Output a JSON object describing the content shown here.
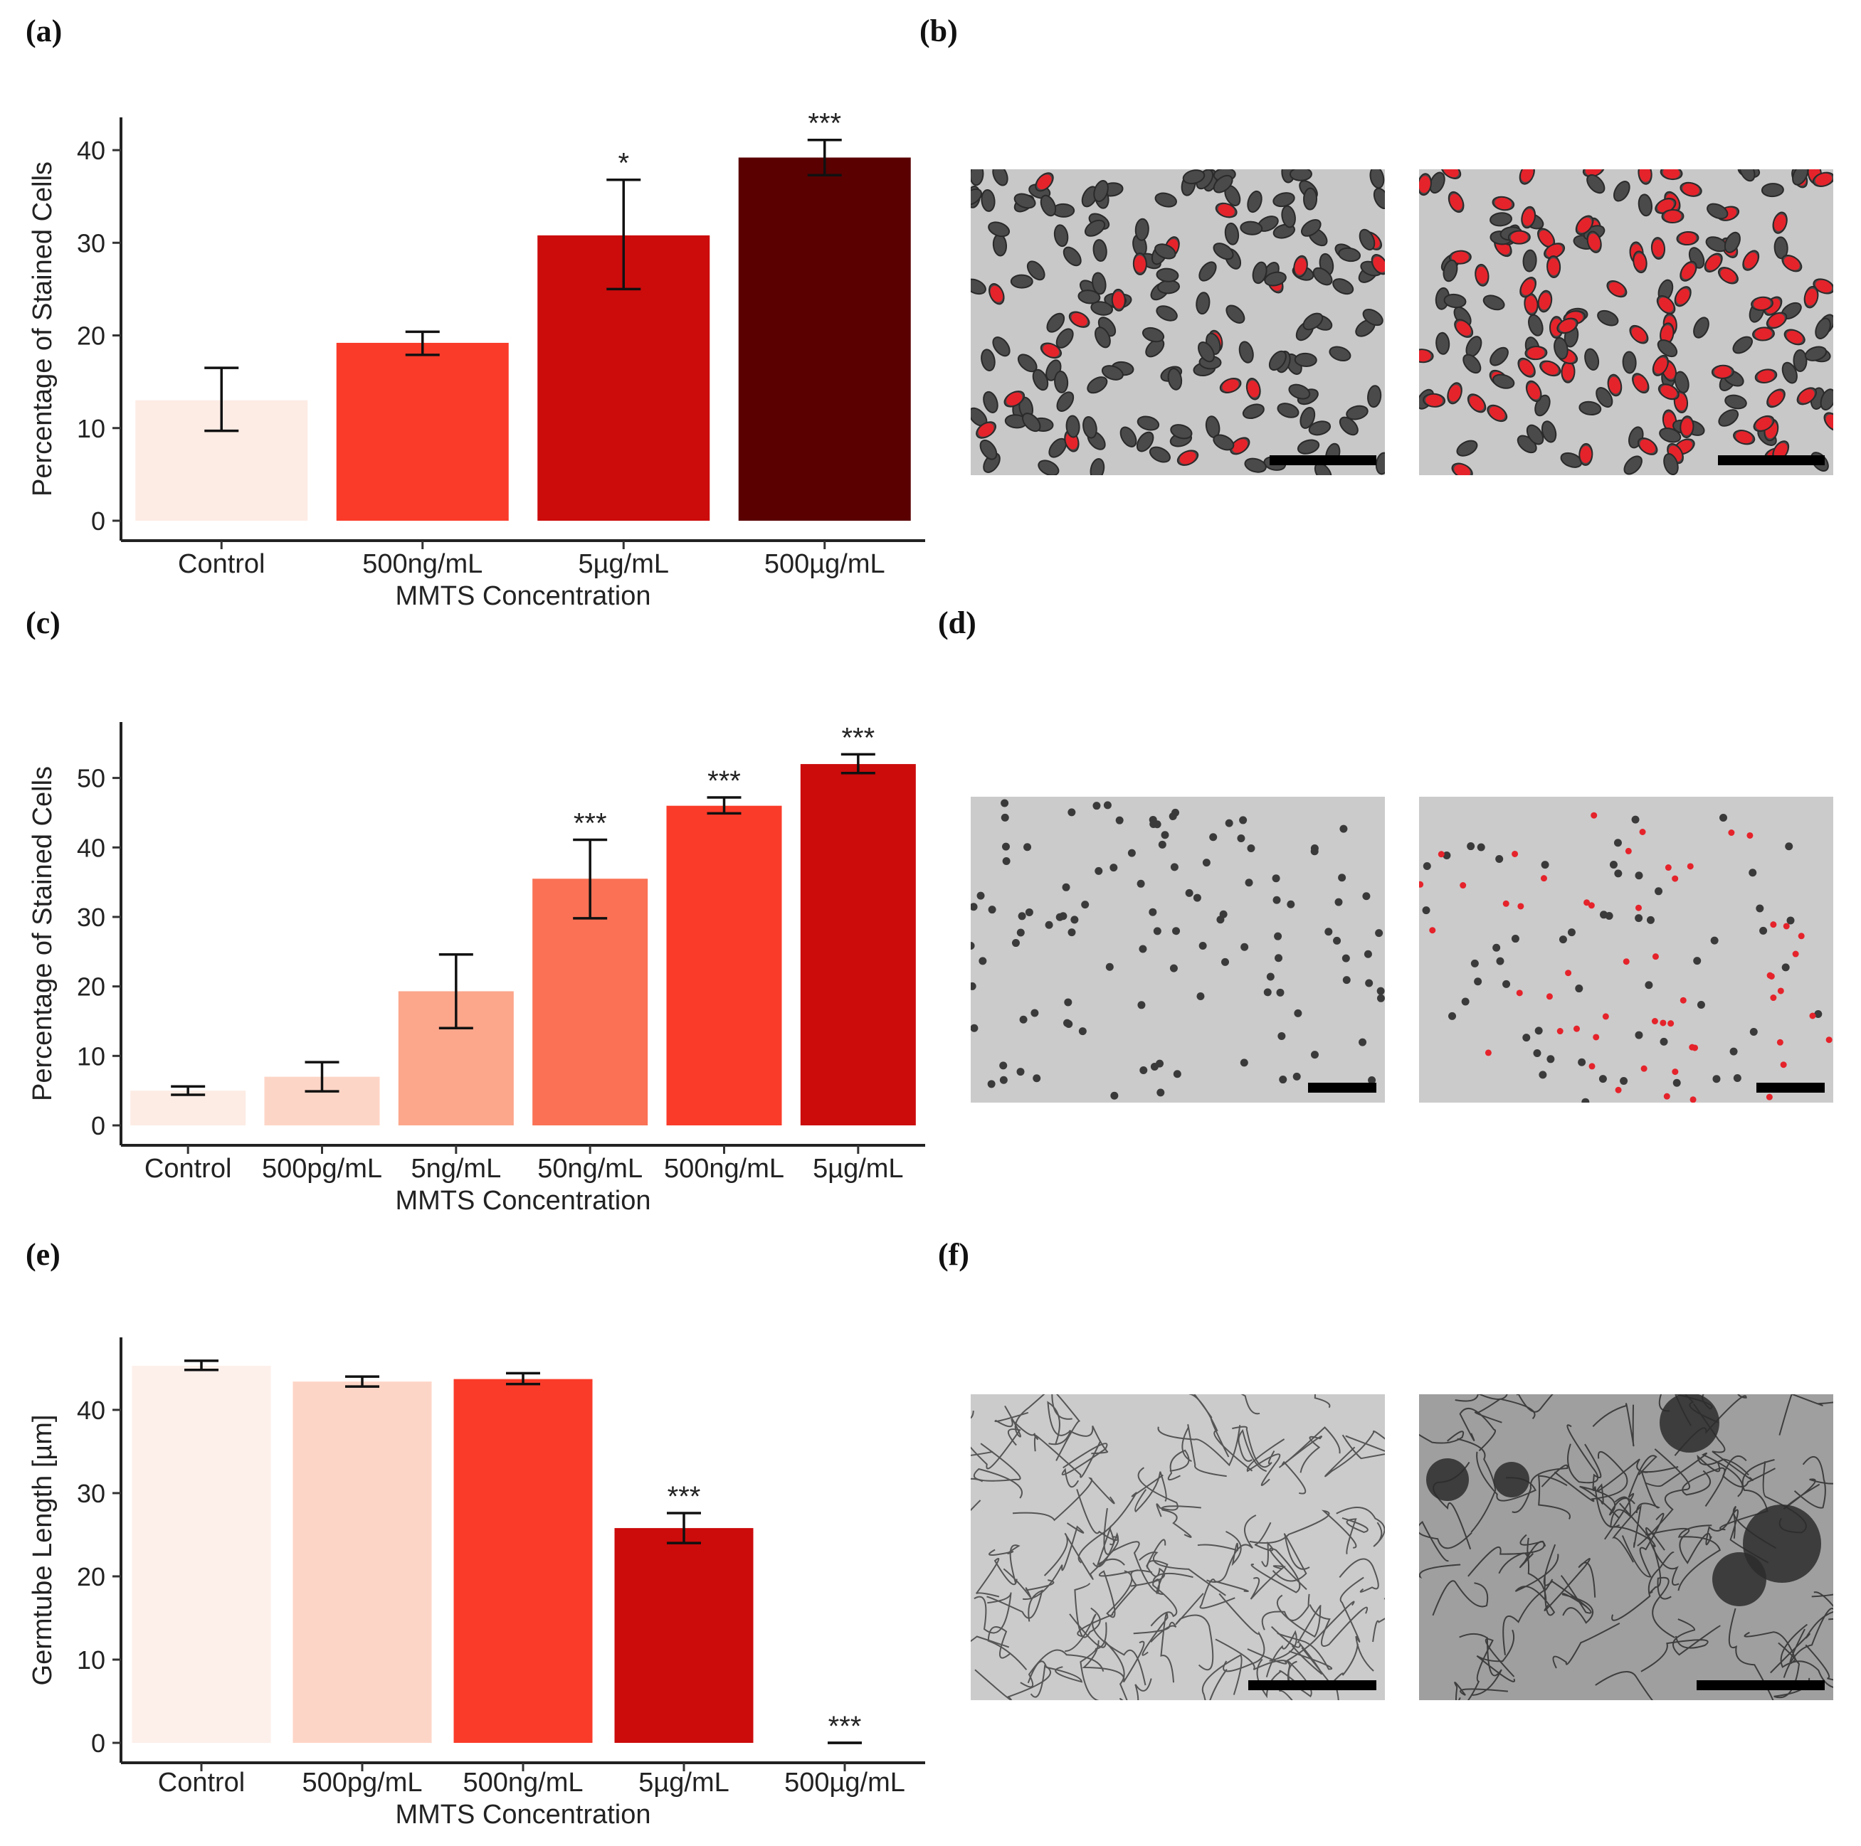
{
  "panels": {
    "a": "(a)",
    "b": "(b)",
    "c": "(c)",
    "d": "(d)",
    "e": "(e)",
    "f": "(f)"
  },
  "chart_data": [
    {
      "id": "a",
      "type": "bar",
      "title": "",
      "xlabel": "MMTS Concentration",
      "ylabel": "Percentage of Stained Cells",
      "ylim": [
        0,
        42
      ],
      "yticks": [
        0,
        10,
        20,
        30,
        40
      ],
      "categories": [
        "Control",
        "500ng/mL",
        "5µg/mL",
        "500µg/mL"
      ],
      "values": [
        13,
        19.2,
        30.8,
        39.2
      ],
      "error_low": [
        9.7,
        17.9,
        25.0,
        37.3
      ],
      "error_high": [
        16.5,
        20.4,
        36.8,
        41.1
      ],
      "significance": [
        "",
        "",
        "*",
        "***"
      ],
      "colors": [
        "#fdece4",
        "#fa3b29",
        "#cc0b0b",
        "#5a0000"
      ]
    },
    {
      "id": "c",
      "type": "bar",
      "title": "",
      "xlabel": "MMTS Concentration",
      "ylabel": "Percentage of Stained Cells",
      "ylim": [
        0,
        56
      ],
      "yticks": [
        0,
        10,
        20,
        30,
        40,
        50
      ],
      "categories": [
        "Control",
        "500pg/mL",
        "5ng/mL",
        "50ng/mL",
        "500ng/mL",
        "5µg/mL"
      ],
      "values": [
        5.0,
        7.0,
        19.3,
        35.5,
        46.0,
        52.0
      ],
      "error_low": [
        4.4,
        4.9,
        14.0,
        29.8,
        44.9,
        50.7
      ],
      "error_high": [
        5.6,
        9.1,
        24.6,
        41.1,
        47.2,
        53.4
      ],
      "significance": [
        "",
        "",
        "",
        "***",
        "***",
        "***"
      ],
      "colors": [
        "#fdece4",
        "#fdd5c6",
        "#fca68b",
        "#fa7155",
        "#fa3b29",
        "#cc0b0b"
      ]
    },
    {
      "id": "e",
      "type": "bar",
      "title": "",
      "xlabel": "MMTS Concentration",
      "ylabel": "Germtube Length [µm]",
      "ylim": [
        0,
        47
      ],
      "yticks": [
        0,
        10,
        20,
        30,
        40
      ],
      "categories": [
        "Control",
        "500pg/mL",
        "500ng/mL",
        "5µg/mL",
        "500µg/mL"
      ],
      "values": [
        45.3,
        43.4,
        43.7,
        25.8,
        0
      ],
      "error_low": [
        44.8,
        42.8,
        43.1,
        24.0,
        0
      ],
      "error_high": [
        45.9,
        44.0,
        44.4,
        27.6,
        0
      ],
      "significance": [
        "",
        "",
        "",
        "***",
        "***"
      ],
      "colors": [
        "#fdefea",
        "#fdd5c6",
        "#fa3b29",
        "#cc0b0b",
        "#5a0000"
      ]
    }
  ],
  "colors": {
    "scale_bar": "#000000",
    "stain": "#e5232b",
    "background_light": "#cfcfcf",
    "background_dark": "#a8a8a8"
  }
}
